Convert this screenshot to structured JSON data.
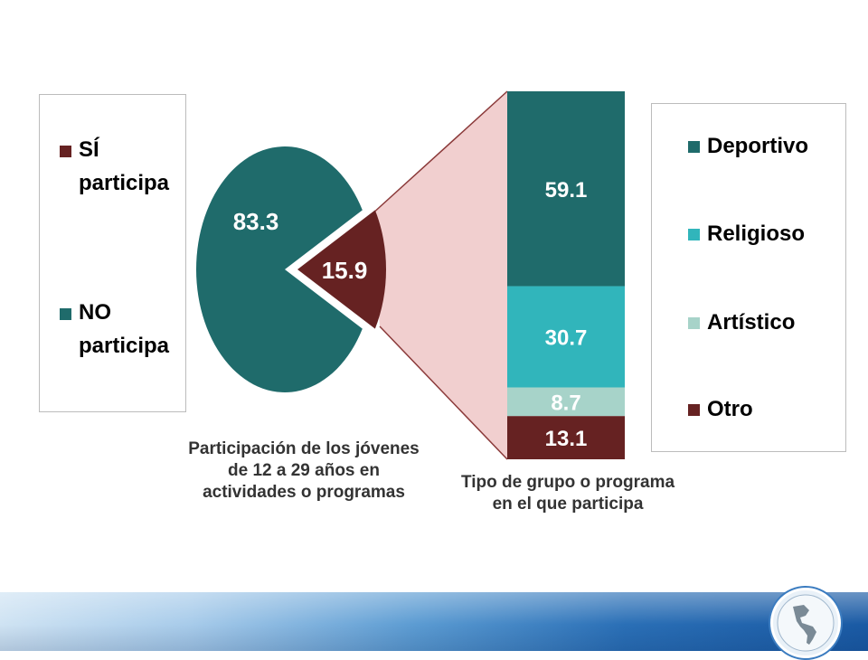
{
  "colors": {
    "teal_dark": "#1f6b6b",
    "teal_light": "#31b5bb",
    "mint": "#a7d3c9",
    "maroon": "#662222",
    "zoom_fill": "#f1cfcf",
    "zoom_line": "#8b3a3a"
  },
  "left_legend": {
    "items": [
      {
        "label": "SÍ participa",
        "color": "#662222"
      },
      {
        "label": "NO participa",
        "color": "#1f6b6b"
      }
    ]
  },
  "right_legend": {
    "items": [
      {
        "label": "Deportivo",
        "color": "#1f6b6b"
      },
      {
        "label": "Religioso",
        "color": "#31b5bb"
      },
      {
        "label": "Artístico",
        "color": "#a7d3c9"
      },
      {
        "label": "Otro",
        "color": "#662222"
      }
    ]
  },
  "captions": {
    "pie": "Participación de los jóvenes de 12 a 29 años en actividades o programas",
    "bar": "Tipo de grupo o programa en el que participa"
  },
  "chart_data": [
    {
      "type": "pie",
      "title": "Participación de los jóvenes de 12 a 29 años en actividades o programas",
      "slices": [
        {
          "name": "NO participa",
          "value": 83.3,
          "color": "#1f6b6b"
        },
        {
          "name": "SÍ participa",
          "value": 15.9,
          "color": "#662222"
        }
      ]
    },
    {
      "type": "bar",
      "stacked": true,
      "title": "Tipo de grupo o programa en el que participa",
      "categories": [
        "Deportivo",
        "Religioso",
        "Artístico",
        "Otro"
      ],
      "values": [
        59.1,
        30.7,
        8.7,
        13.1
      ],
      "colors": [
        "#1f6b6b",
        "#31b5bb",
        "#a7d3c9",
        "#662222"
      ]
    }
  ]
}
